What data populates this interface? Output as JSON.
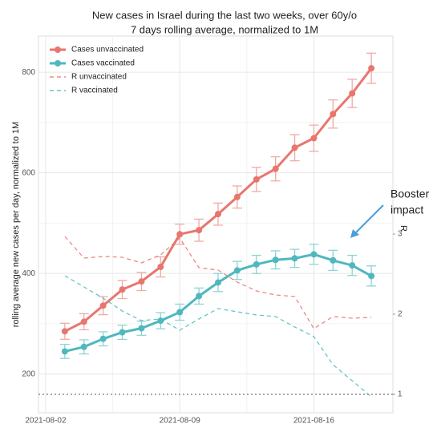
{
  "chart_data": {
    "type": "line",
    "title": [
      "New cases in Israel during the last two weeks, over 60y/o",
      "7 days rolling average, normalized to 1M"
    ],
    "ylabel": "rolling average new cases per day, normalized to 1M",
    "y2label": "R",
    "annotation": [
      "Booster",
      "impact"
    ],
    "x": [
      "2021-08-03",
      "2021-08-04",
      "2021-08-05",
      "2021-08-06",
      "2021-08-07",
      "2021-08-08",
      "2021-08-09",
      "2021-08-10",
      "2021-08-11",
      "2021-08-12",
      "2021-08-13",
      "2021-08-14",
      "2021-08-15",
      "2021-08-16",
      "2021-08-17",
      "2021-08-18",
      "2021-08-19"
    ],
    "xlim": [
      "2021-08-01T15:00:00Z",
      "2021-08-20T03:00:00Z"
    ],
    "xticks": [
      "2021-08-02",
      "2021-08-09",
      "2021-08-16"
    ],
    "ylim": [
      123,
      872
    ],
    "yticks": [
      200,
      400,
      600,
      800
    ],
    "y2lim": [
      0.77,
      5.47
    ],
    "y2ticks": [
      1,
      2,
      3
    ],
    "grid": true,
    "legend": "top-left",
    "reference_line": {
      "axis": "y2",
      "value": 1,
      "color": "#777777"
    },
    "series": [
      {
        "name": "Cases unvaccinated",
        "color": "#e8766e",
        "error_color": "#f0aaa5",
        "dash": false,
        "values": [
          285,
          304,
          336,
          368,
          384,
          413,
          478,
          486,
          518,
          552,
          587,
          608,
          650,
          669,
          717,
          758,
          808
        ],
        "errors": [
          16,
          16,
          18,
          18,
          18,
          20,
          20,
          22,
          22,
          22,
          24,
          24,
          26,
          26,
          28,
          28,
          30
        ]
      },
      {
        "name": "Cases vaccinated",
        "color": "#4fb8be",
        "error_color": "#8fd3d6",
        "dash": false,
        "values": [
          245,
          254,
          270,
          283,
          291,
          306,
          323,
          355,
          382,
          406,
          418,
          427,
          430,
          438,
          426,
          416,
          395
        ],
        "errors": [
          14,
          14,
          14,
          14,
          14,
          16,
          16,
          16,
          18,
          18,
          18,
          18,
          18,
          20,
          20,
          20,
          20
        ]
      },
      {
        "name": "R unvaccinated",
        "color": "#e8766e",
        "dash": true,
        "axis": "y2",
        "values": [
          2.97,
          2.7,
          2.72,
          2.71,
          2.64,
          2.74,
          2.95,
          2.58,
          2.55,
          2.4,
          2.29,
          2.24,
          2.22,
          1.82,
          1.97,
          1.95,
          1.96
        ]
      },
      {
        "name": "R vaccinated",
        "color": "#4fb8be",
        "dash": true,
        "axis": "y2",
        "values": [
          2.48,
          2.34,
          2.2,
          2.04,
          1.92,
          1.94,
          1.8,
          1.94,
          2.07,
          2.03,
          1.99,
          1.97,
          1.84,
          1.72,
          1.37,
          1.17,
          0.97
        ]
      }
    ]
  }
}
